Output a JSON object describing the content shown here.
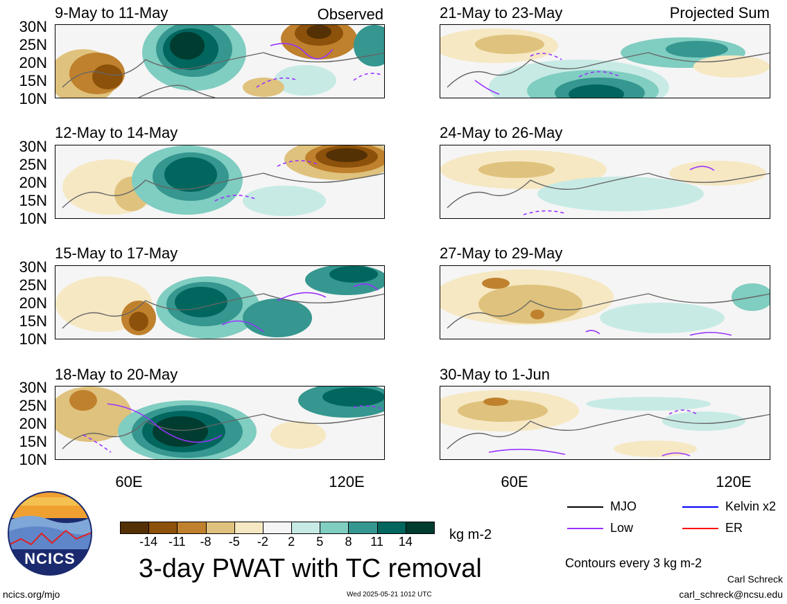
{
  "panels": [
    {
      "title": "9-May to 11-May",
      "label": "Observed"
    },
    {
      "title": "21-May to 23-May",
      "label": "Projected Sum"
    },
    {
      "title": "12-May to 14-May",
      "label": ""
    },
    {
      "title": "24-May to 26-May",
      "label": ""
    },
    {
      "title": "15-May to 17-May",
      "label": ""
    },
    {
      "title": "27-May to 29-May",
      "label": ""
    },
    {
      "title": "18-May to 20-May",
      "label": ""
    },
    {
      "title": "30-May to 1-Jun",
      "label": ""
    }
  ],
  "y_ticks": [
    "30N",
    "25N",
    "20N",
    "15N",
    "10N"
  ],
  "x_ticks": [
    "60E",
    "120E"
  ],
  "colorbar": {
    "labels": [
      "-14",
      "-11",
      "-8",
      "-5",
      "-2",
      "2",
      "5",
      "8",
      "11",
      "14"
    ],
    "colors": [
      "#543005",
      "#8c510a",
      "#bf812d",
      "#dfc27d",
      "#f6e8c3",
      "#f5f5f5",
      "#c7eae5",
      "#80cdc1",
      "#35978f",
      "#01665e",
      "#003c30"
    ],
    "unit": "kg m-2"
  },
  "legend": {
    "mjo": "MJO",
    "kelvin": "Kelvin x2",
    "low": "Low",
    "er": "ER",
    "colors": {
      "mjo": "#000000",
      "kelvin": "#0000ff",
      "low": "#9933ff",
      "er": "#ff0000"
    }
  },
  "contour_note": "Contours every 3 kg m-2",
  "main_title": "3-day PWAT with TC removal",
  "logo_text": "NCICS",
  "url": "ncics.org/mjo",
  "timestamp": "Wed 2025-05-21 1012 UTC",
  "author": "Carl Schreck",
  "email": "carl_schreck@ncsu.edu"
}
